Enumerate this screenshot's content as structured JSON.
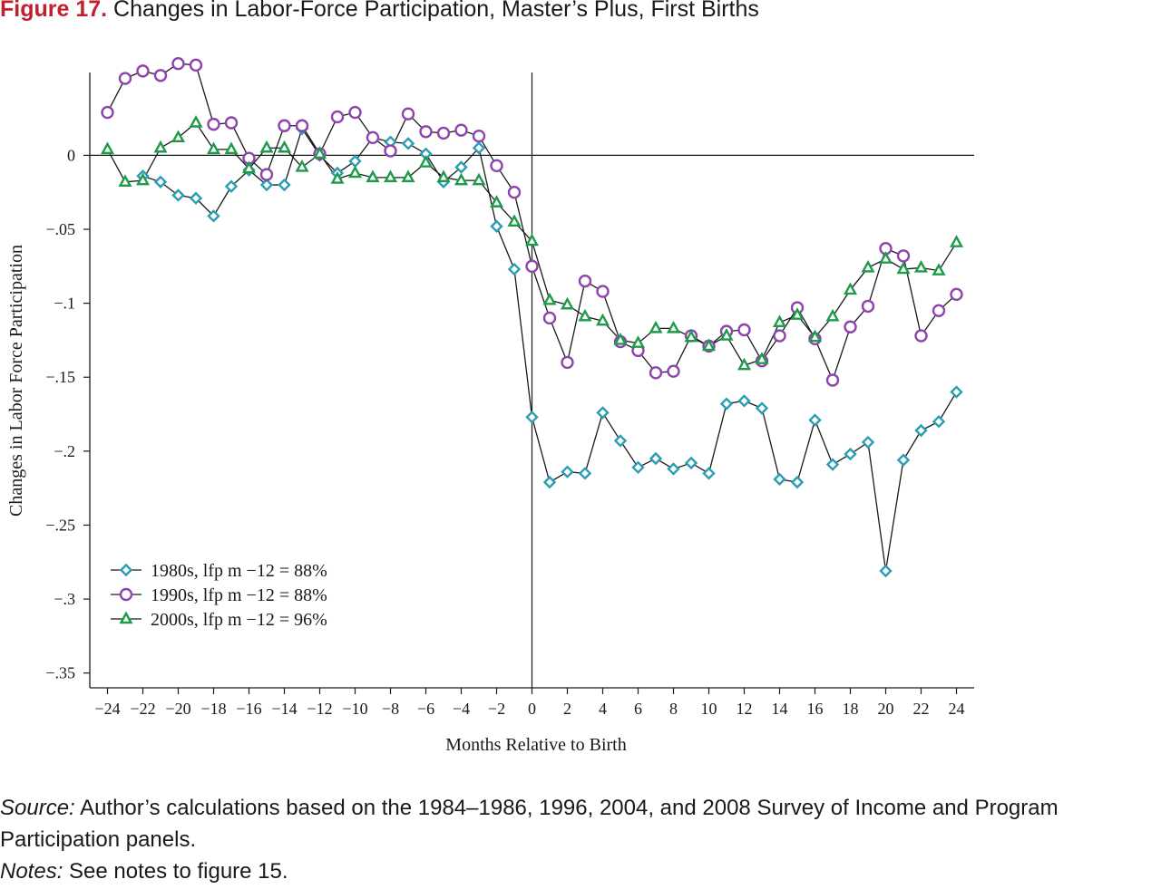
{
  "figure": {
    "label": "Figure 17.",
    "title": "Changes in Labor-Force Participation, Master’s Plus, First Births",
    "label_color": "#c0212e"
  },
  "notes": {
    "source_label": "Source:",
    "source_text": " Author’s calculations based on the 1984–1986, 1996, 2004, and 2008 Survey of Income and Program Participation panels.",
    "notes_label": "Notes:",
    "notes_text": " See notes to figure 15."
  },
  "chart_data": {
    "type": "line",
    "xlabel": "Months Relative to Birth",
    "ylabel": "Changes in Labor Force Participation",
    "xlim": [
      -25,
      25
    ],
    "ylim": [
      -0.36,
      0.056
    ],
    "xticks": [
      -24,
      -22,
      -20,
      -18,
      -16,
      -14,
      -12,
      -10,
      -8,
      -6,
      -4,
      -2,
      0,
      2,
      4,
      6,
      8,
      10,
      12,
      14,
      16,
      18,
      20,
      22,
      24
    ],
    "xtick_labels": [
      "−24",
      "−22",
      "−20",
      "−18",
      "−16",
      "−14",
      "−12",
      "−10",
      "−8",
      "−6",
      "−4",
      "−2",
      "0",
      "2",
      "4",
      "6",
      "8",
      "10",
      "12",
      "14",
      "16",
      "18",
      "20",
      "22",
      "24"
    ],
    "yticks": [
      0,
      -0.05,
      -0.1,
      -0.15,
      -0.2,
      -0.25,
      -0.3,
      -0.35
    ],
    "ytick_labels": [
      "0",
      "−.05",
      "−.1",
      "−.15",
      "−.2",
      "−.25",
      "−.3",
      "−.35"
    ],
    "reference_lines": {
      "x": 0,
      "y": 0
    },
    "grid": false,
    "legend_position": "bottom-left",
    "x": [
      -24,
      -23,
      -22,
      -21,
      -20,
      -19,
      -18,
      -17,
      -16,
      -15,
      -14,
      -13,
      -12,
      -11,
      -10,
      -9,
      -8,
      -7,
      -6,
      -5,
      -4,
      -3,
      -2,
      -1,
      0,
      1,
      2,
      3,
      4,
      5,
      6,
      7,
      8,
      9,
      10,
      11,
      12,
      13,
      14,
      15,
      16,
      17,
      18,
      19,
      20,
      21,
      22,
      23,
      24
    ],
    "series": [
      {
        "name": "1980s, lfp m −12 = 88%",
        "marker": "diamond",
        "color": "#2a9db5",
        "values": [
          null,
          null,
          -0.014,
          -0.018,
          -0.027,
          -0.029,
          -0.041,
          -0.021,
          -0.01,
          -0.02,
          -0.02,
          0.018,
          0,
          -0.012,
          -0.004,
          0.012,
          0.009,
          0.008,
          0.001,
          -0.018,
          -0.008,
          0.005,
          -0.048,
          -0.077,
          -0.177,
          -0.221,
          -0.214,
          -0.215,
          -0.174,
          -0.193,
          -0.211,
          -0.205,
          -0.212,
          -0.208,
          -0.215,
          -0.168,
          -0.166,
          -0.171,
          -0.219,
          -0.221,
          -0.179,
          -0.209,
          -0.202,
          -0.194,
          -0.281,
          -0.206,
          -0.186,
          -0.18,
          -0.16
        ]
      },
      {
        "name": "1990s, lfp m −12 = 88%",
        "marker": "circle",
        "color": "#8e44ad",
        "values": [
          0.029,
          0.052,
          0.057,
          0.054,
          0.062,
          0.061,
          0.021,
          0.022,
          -0.002,
          -0.013,
          0.02,
          0.02,
          0.001,
          0.026,
          0.029,
          0.012,
          0.003,
          0.028,
          0.016,
          0.015,
          0.017,
          0.013,
          -0.007,
          -0.025,
          -0.075,
          -0.11,
          -0.14,
          -0.085,
          -0.092,
          -0.126,
          -0.132,
          -0.147,
          -0.146,
          -0.122,
          -0.129,
          -0.119,
          -0.118,
          -0.139,
          -0.122,
          -0.103,
          -0.124,
          -0.152,
          -0.116,
          -0.102,
          -0.063,
          -0.068,
          -0.122,
          -0.105,
          -0.094
        ]
      },
      {
        "name": "2000s, lfp m −12 = 96%",
        "marker": "triangle",
        "color": "#1e9b4a",
        "values": [
          0.004,
          -0.018,
          -0.017,
          0.005,
          0.012,
          0.022,
          0.004,
          0.004,
          -0.009,
          0.005,
          0.005,
          -0.008,
          0.001,
          -0.016,
          -0.012,
          -0.015,
          -0.015,
          -0.015,
          -0.005,
          -0.015,
          -0.017,
          -0.017,
          -0.032,
          -0.045,
          -0.058,
          -0.098,
          -0.101,
          -0.109,
          -0.112,
          -0.125,
          -0.127,
          -0.117,
          -0.117,
          -0.123,
          -0.129,
          -0.122,
          -0.142,
          -0.138,
          -0.113,
          -0.108,
          -0.123,
          -0.109,
          -0.091,
          -0.076,
          -0.07,
          -0.077,
          -0.076,
          -0.078,
          -0.059
        ]
      }
    ]
  }
}
